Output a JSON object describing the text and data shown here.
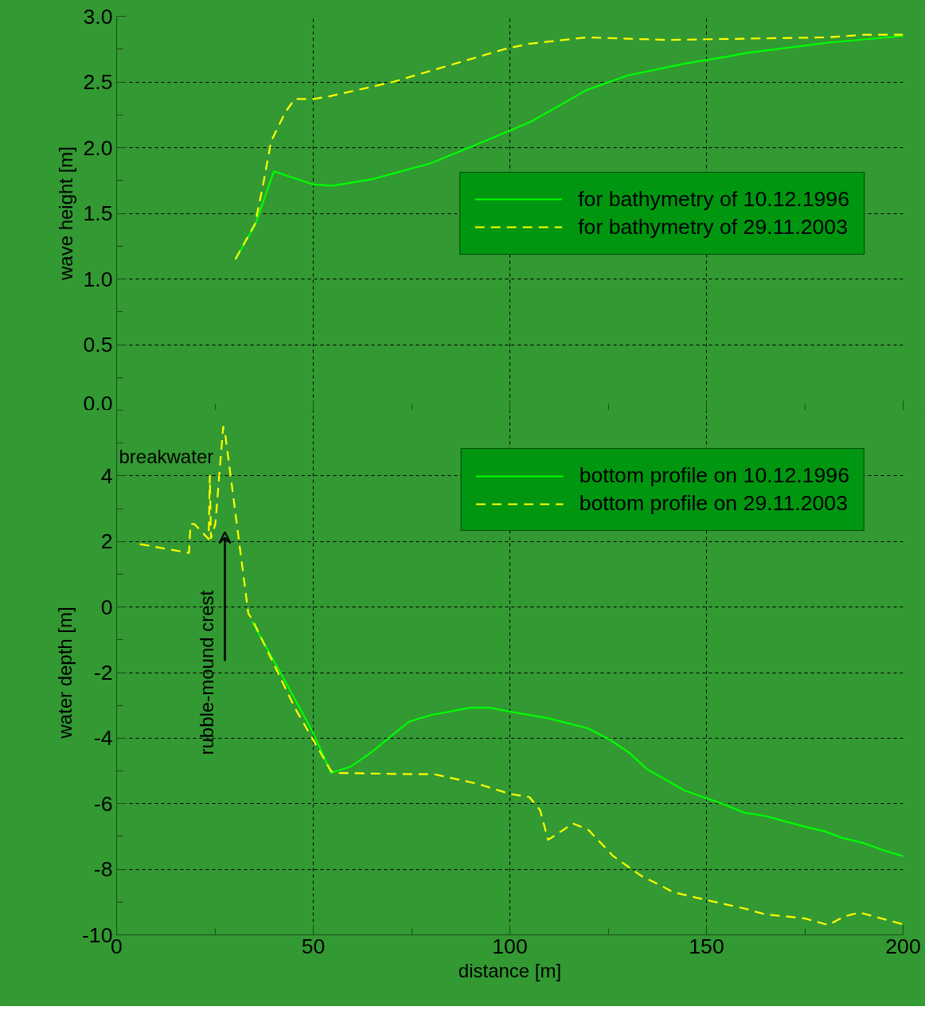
{
  "chart_data": [
    {
      "type": "line",
      "ylabel": "wave height [m]",
      "xlim": [
        0,
        200
      ],
      "xticks": [
        0,
        50,
        100,
        150,
        200
      ],
      "ylim": [
        0,
        3
      ],
      "yticks": [
        {
          "value": 0,
          "label": "0.0"
        },
        0.5,
        {
          "value": 1,
          "label": "1.0"
        },
        1.5,
        {
          "value": 2,
          "label": "2.0"
        },
        2.5,
        {
          "value": 3,
          "label": "3.0"
        }
      ],
      "tick_labels": "y",
      "grid": true,
      "legend": "right",
      "series": [
        {
          "name": "for bathymetry of 10.12.1996",
          "color": "#00ff00",
          "line_style": "solid",
          "x": [
            30.2,
            35.2,
            40,
            50,
            54.9,
            65,
            79.8,
            94.5,
            105.5,
            119.6,
            130,
            144.5,
            154.7,
            160,
            181,
            200
          ],
          "values": [
            1.15,
            1.41,
            1.82,
            1.72,
            1.71,
            1.76,
            1.88,
            2.06,
            2.2,
            2.44,
            2.55,
            2.64,
            2.69,
            2.72,
            2.8,
            2.85
          ]
        },
        {
          "name": "for bathymetry of 29.11.2003",
          "color": "#ffff00",
          "line_style": "dashed",
          "x": [
            30.2,
            35.2,
            37.2,
            39.3,
            42.9,
            45.3,
            50,
            54,
            70.2,
            98.6,
            104.7,
            119.6,
            130,
            140,
            160,
            181,
            190,
            200
          ],
          "values": [
            1.15,
            1.42,
            1.71,
            2.05,
            2.27,
            2.37,
            2.37,
            2.39,
            2.5,
            2.75,
            2.79,
            2.84,
            2.83,
            2.82,
            2.83,
            2.84,
            2.86,
            2.86
          ]
        }
      ]
    },
    {
      "type": "line",
      "xlabel": "distance [m]",
      "ylabel": "water depth [m]",
      "xlim": [
        0,
        200
      ],
      "xticks": [
        0,
        50,
        100,
        150,
        200
      ],
      "ylim": [
        -10,
        6
      ],
      "yticks": [
        -10,
        -8,
        -6,
        -4,
        -2,
        0,
        2,
        4
      ],
      "grid": true,
      "legend": "top right",
      "annotations": [
        "breakwater",
        "rubble-mound crest"
      ],
      "series": [
        {
          "name": "bottom profile on 10.12.1996",
          "color": "#00ff00",
          "line_style": "solid",
          "x": [
            34.4,
            42.3,
            50,
            54.5,
            59.5,
            64.6,
            74.3,
            79.8,
            89.9,
            94.9,
            100,
            110,
            119.8,
            125.3,
            130.4,
            134.8,
            144.5,
            154.7,
            159.7,
            164.8,
            175,
            180,
            185,
            190,
            195,
            200
          ],
          "values": [
            -0.44,
            -2.14,
            -3.84,
            -5.06,
            -4.87,
            -4.45,
            -3.5,
            -3.3,
            -3.07,
            -3.07,
            -3.19,
            -3.4,
            -3.7,
            -4.04,
            -4.45,
            -4.94,
            -5.6,
            -6.03,
            -6.28,
            -6.37,
            -6.7,
            -6.84,
            -7.06,
            -7.2,
            -7.42,
            -7.6
          ]
        },
        {
          "name": "bottom profile on 29.11.2003",
          "color": "#ffff00",
          "line_style": "dashed",
          "x": [
            5.9,
            18.4,
            18.8,
            19.8,
            23.4,
            23.7,
            24.0,
            25.1,
            27.1,
            27.7,
            33.5,
            34.6,
            45.3,
            54.5,
            55.5,
            75.7,
            80.8,
            92,
            100,
            105,
            107.7,
            109.7,
            113.6,
            116,
            120,
            126.3,
            133.4,
            138.5,
            141.5,
            148.6,
            159.7,
            164.8,
            175,
            181,
            185,
            189,
            200
          ],
          "values": [
            1.92,
            1.65,
            2.53,
            2.53,
            2.07,
            4.0,
            2.1,
            2.53,
            5.5,
            5.2,
            -0.2,
            -0.4,
            -3.07,
            -5.0,
            -5.06,
            -5.1,
            -5.1,
            -5.4,
            -5.7,
            -5.8,
            -6.2,
            -7.1,
            -6.8,
            -6.6,
            -6.8,
            -7.6,
            -8.2,
            -8.5,
            -8.7,
            -8.9,
            -9.2,
            -9.37,
            -9.5,
            -9.7,
            -9.44,
            -9.32,
            -9.68
          ]
        }
      ]
    }
  ]
}
